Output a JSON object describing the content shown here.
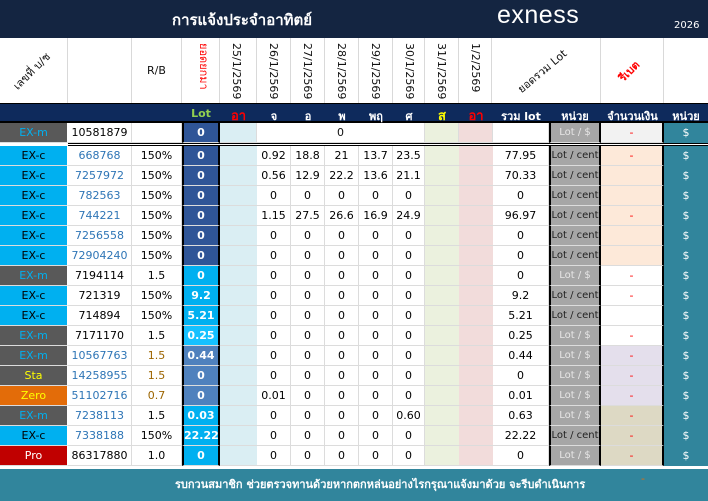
{
  "header": {
    "title": "การแจ้งประจำอาทิตย์",
    "brand": "exness",
    "year": "2026"
  },
  "columns": {
    "account_label": "เลขที่ บ/ช",
    "rb_label": "R/B",
    "carry_label": "ยอดยกมา",
    "dates": [
      "25/1/2569",
      "26/1/2569",
      "27/1/2569",
      "28/1/2569",
      "29/1/2569",
      "30/1/2569",
      "31/1/2569",
      "1/2/2569"
    ],
    "total_label": "ยอดรวม Lot",
    "rebate_label": "รีเบต"
  },
  "subheader": {
    "lot": "Lot",
    "days": [
      "อา",
      "จ",
      "อ",
      "พ",
      "พฤ",
      "ศ",
      "ส",
      "อา"
    ],
    "total_lot": "รวม lot",
    "unit": "หน่วย",
    "amount": "จำนวนเงิน",
    "unit2": "หน่วย"
  },
  "rows": [
    {
      "type": "EX-m",
      "account": "10581879",
      "rb": "",
      "lot": "0",
      "days": [
        "",
        "0",
        "",
        "",
        "",
        "",
        "",
        ""
      ],
      "merged_day_value": "0",
      "total": "",
      "unit": "Lot / $",
      "amount": "-",
      "currency": "$"
    },
    {
      "type": "EX-c",
      "account": "668768",
      "rb": "150%",
      "lot": "0",
      "days": [
        "",
        "0.92",
        "18.8",
        "21",
        "13.7",
        "23.5",
        "",
        ""
      ],
      "total": "77.95",
      "unit": "Lot / cent",
      "amount": "-",
      "currency": "$"
    },
    {
      "type": "EX-c",
      "account": "7257972",
      "rb": "150%",
      "lot": "0",
      "days": [
        "",
        "0.56",
        "12.9",
        "22.2",
        "13.6",
        "21.1",
        "",
        ""
      ],
      "total": "70.33",
      "unit": "Lot / cent",
      "amount": "",
      "currency": "$"
    },
    {
      "type": "EX-c",
      "account": "782563",
      "rb": "150%",
      "lot": "0",
      "days": [
        "",
        "0",
        "0",
        "0",
        "0",
        "0",
        "",
        ""
      ],
      "total": "0",
      "unit": "Lot / cent",
      "amount": "",
      "currency": "$"
    },
    {
      "type": "EX-c",
      "account": "744221",
      "rb": "150%",
      "lot": "0",
      "days": [
        "",
        "1.15",
        "27.5",
        "26.6",
        "16.9",
        "24.9",
        "",
        ""
      ],
      "total": "96.97",
      "unit": "Lot / cent",
      "amount": "-",
      "currency": "$"
    },
    {
      "type": "EX-c",
      "account": "7256558",
      "rb": "150%",
      "lot": "0",
      "days": [
        "",
        "0",
        "0",
        "0",
        "0",
        "0",
        "",
        ""
      ],
      "total": "0",
      "unit": "Lot / cent",
      "amount": "",
      "currency": "$"
    },
    {
      "type": "EX-c",
      "account": "72904240",
      "rb": "150%",
      "lot": "0",
      "days": [
        "",
        "0",
        "0",
        "0",
        "0",
        "0",
        "",
        ""
      ],
      "total": "0",
      "unit": "Lot / cent",
      "amount": "",
      "currency": "$"
    },
    {
      "type": "EX-m",
      "account": "7194114",
      "rb": "1.5",
      "lot": "0",
      "days": [
        "",
        "0",
        "0",
        "0",
        "0",
        "0",
        "",
        ""
      ],
      "total": "0",
      "unit": "Lot / $",
      "amount": "-",
      "currency": "$"
    },
    {
      "type": "EX-c",
      "account": "721319",
      "rb": "150%",
      "lot": "9.2",
      "days": [
        "",
        "0",
        "0",
        "0",
        "0",
        "0",
        "",
        ""
      ],
      "total": "9.2",
      "unit": "Lot / cent",
      "amount": "-",
      "currency": "$"
    },
    {
      "type": "EX-c",
      "account": "714894",
      "rb": "150%",
      "lot": "5.21",
      "days": [
        "",
        "0",
        "0",
        "0",
        "0",
        "0",
        "",
        ""
      ],
      "total": "5.21",
      "unit": "Lot / cent",
      "amount": "",
      "currency": "$"
    },
    {
      "type": "EX-m",
      "account": "7171170",
      "rb": "1.5",
      "lot": "0.25",
      "days": [
        "",
        "0",
        "0",
        "0",
        "0",
        "0",
        "",
        ""
      ],
      "total": "0.25",
      "unit": "Lot / $",
      "amount": "-",
      "currency": "$"
    },
    {
      "type": "EX-m",
      "account": "10567763",
      "rb": "1.5",
      "lot": "0.44",
      "days": [
        "",
        "0",
        "0",
        "0",
        "0",
        "0",
        "",
        ""
      ],
      "total": "0.44",
      "unit": "Lot / $",
      "amount": "-",
      "currency": "$"
    },
    {
      "type": "Sta",
      "account": "14258955",
      "rb": "1.5",
      "lot": "0",
      "days": [
        "",
        "0",
        "0",
        "0",
        "0",
        "0",
        "",
        ""
      ],
      "total": "0",
      "unit": "Lot / $",
      "amount": "-",
      "currency": "$"
    },
    {
      "type": "Zero",
      "account": "51102716",
      "rb": "0.7",
      "lot": "0",
      "days": [
        "",
        "0.01",
        "0",
        "0",
        "0",
        "0",
        "",
        ""
      ],
      "total": "0.01",
      "unit": "Lot / $",
      "amount": "-",
      "currency": "$"
    },
    {
      "type": "EX-m",
      "account": "7238113",
      "rb": "1.5",
      "lot": "0.03",
      "days": [
        "",
        "0",
        "0",
        "0",
        "0",
        "0.60",
        "",
        ""
      ],
      "total": "0.63",
      "unit": "Lot / $",
      "amount": "-",
      "currency": "$"
    },
    {
      "type": "EX-c",
      "account": "7338188",
      "rb": "150%",
      "lot": "22.22",
      "days": [
        "",
        "0",
        "0",
        "0",
        "0",
        "0",
        "",
        ""
      ],
      "total": "22.22",
      "unit": "Lot / cent",
      "amount": "-",
      "currency": "$"
    },
    {
      "type": "Pro",
      "account": "86317880",
      "rb": "1.0",
      "lot": "0",
      "days": [
        "",
        "0",
        "0",
        "0",
        "0",
        "0",
        "",
        ""
      ],
      "total": "0",
      "unit": "Lot / $",
      "amount": "-",
      "currency": "$"
    }
  ],
  "footer": {
    "message": "รบกวนสมาชิก ช่วยตรวจทานด้วยหากตกหล่นอย่างไรกรุณาแจ้งมาด้วย จะรีบดำเนินการ",
    "dash": "-"
  },
  "colors": {
    "topbar": "#142541",
    "subheader": "#0e2a5c",
    "footer": "#31859c",
    "exm_bg": "#595959",
    "exm_fg": "#00b0f0",
    "exc_bg": "#00b0f0",
    "sta_bg": "#595959",
    "sta_fg": "#ffff00",
    "zero_bg": "#e36c09",
    "zero_fg": "#ffff00",
    "pro_bg": "#c00000",
    "red_text": "#ff0000"
  }
}
